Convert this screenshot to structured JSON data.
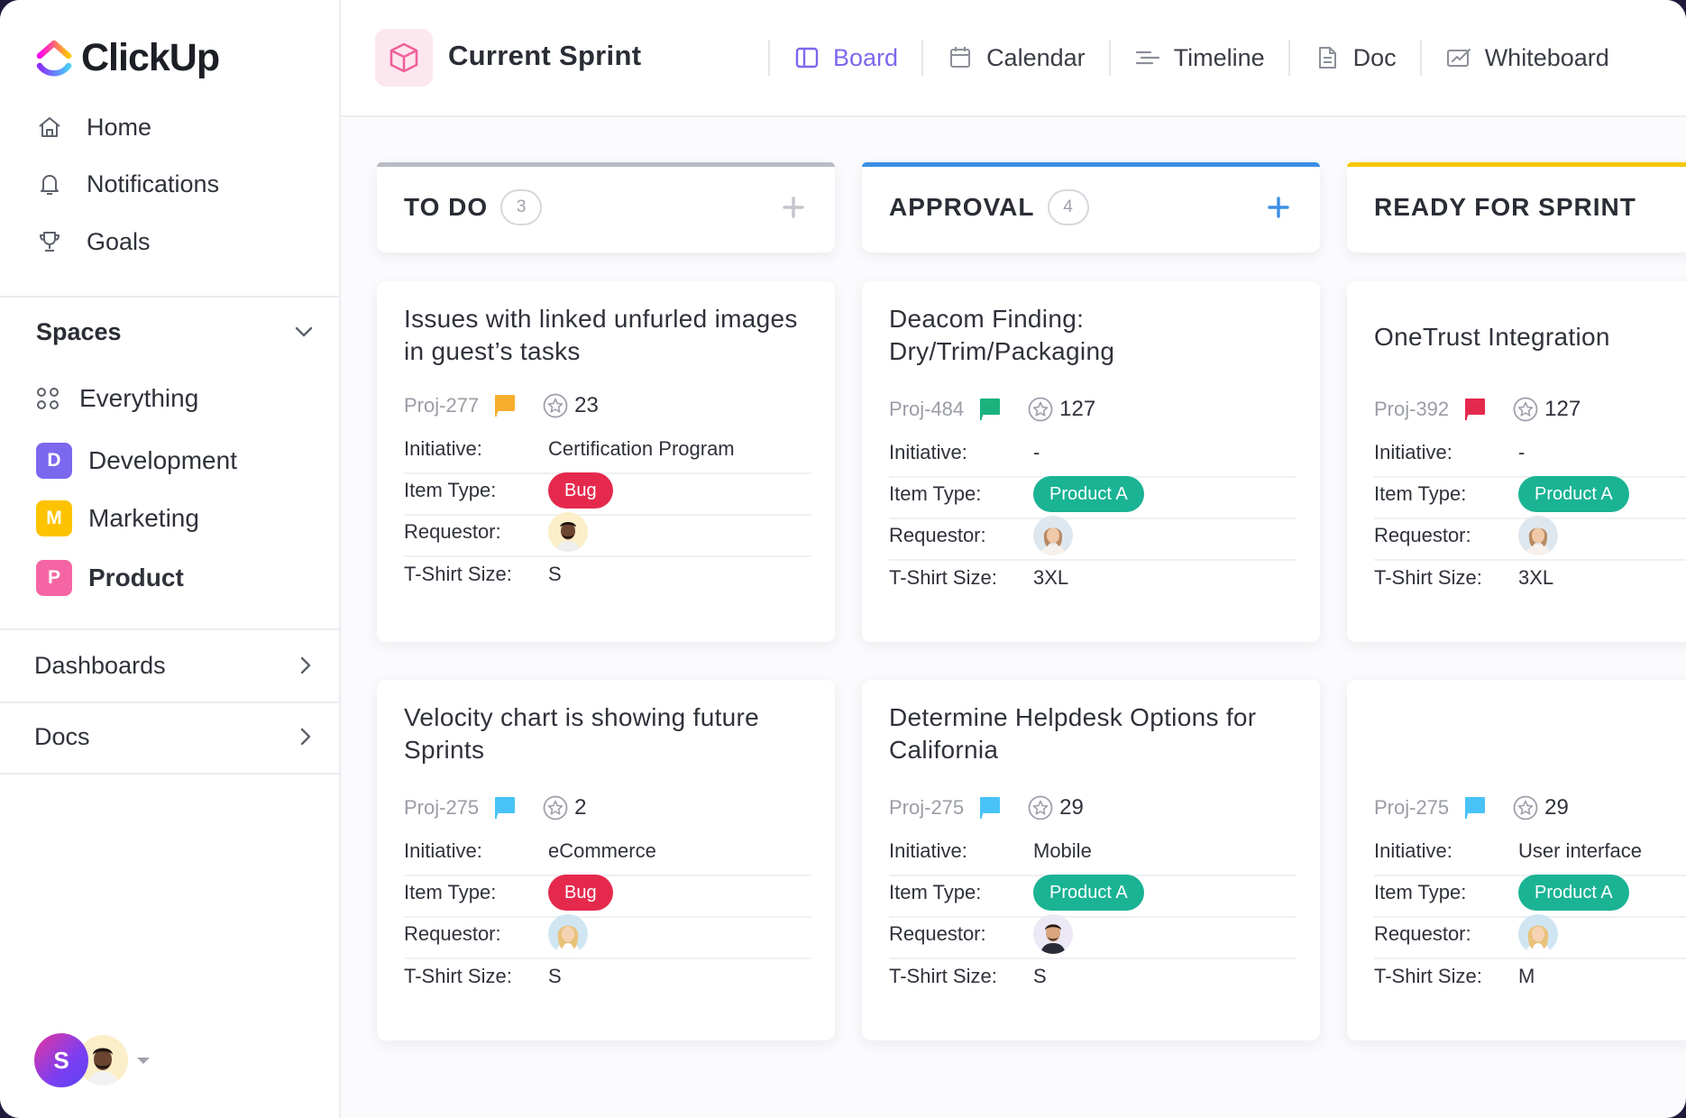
{
  "app": {
    "name": "ClickUp"
  },
  "sidebar": {
    "nav": [
      {
        "label": "Home",
        "icon": "home-icon"
      },
      {
        "label": "Notifications",
        "icon": "bell-icon"
      },
      {
        "label": "Goals",
        "icon": "trophy-icon"
      }
    ],
    "spaces_label": "Spaces",
    "everything_label": "Everything",
    "spaces": [
      {
        "letter": "D",
        "label": "Development",
        "color": "#7b68ee"
      },
      {
        "letter": "M",
        "label": "Marketing",
        "color": "#fdc300"
      },
      {
        "letter": "P",
        "label": "Product",
        "color": "#f565a4"
      }
    ],
    "dashboards_label": "Dashboards",
    "docs_label": "Docs",
    "user_initial": "S"
  },
  "topbar": {
    "title": "Current Sprint",
    "tabs": [
      {
        "label": "Board",
        "icon": "board-icon",
        "active": true
      },
      {
        "label": "Calendar",
        "icon": "calendar-icon"
      },
      {
        "label": "Timeline",
        "icon": "timeline-icon"
      },
      {
        "label": "Doc",
        "icon": "doc-icon"
      },
      {
        "label": "Whiteboard",
        "icon": "whiteboard-icon"
      }
    ]
  },
  "board": {
    "field_labels": {
      "initiative": "Initiative:",
      "item_type": "Item Type:",
      "requestor": "Requestor:",
      "tshirt": "T-Shirt Size:"
    },
    "columns": [
      {
        "title": "TO DO",
        "count": "3",
        "color": "#b9bcc4",
        "cards": [
          {
            "title": "Issues with linked unfurled images in guest’s tasks",
            "proj": "Proj-277",
            "flag": "#f8ae2d",
            "points": "23",
            "initiative": "Certification Program",
            "type": "Bug",
            "size": "S"
          },
          {
            "title": "Velocity chart is showing future Sprints",
            "proj": "Proj-275",
            "flag": "#49c3f7",
            "points": "2",
            "initiative": "eCommerce",
            "type": "Bug",
            "size": "S"
          }
        ]
      },
      {
        "title": "APPROVAL",
        "count": "4",
        "color": "#3b8fe4",
        "cards": [
          {
            "title": "Deacom Finding: Dry/Trim/Packaging",
            "proj": "Proj-484",
            "flag": "#1ab37e",
            "points": "127",
            "initiative": "-",
            "type": "Product A",
            "size": "3XL"
          },
          {
            "title": "Determine Helpdesk Options for California",
            "proj": "Proj-275",
            "flag": "#49c3f7",
            "points": "29",
            "initiative": "Mobile",
            "type": "Product A",
            "size": "S"
          }
        ]
      },
      {
        "title": "READY FOR SPRINT",
        "count": "",
        "color": "#f5c800",
        "cards": [
          {
            "title": "OneTrust Integration",
            "proj": "Proj-392",
            "flag": "#e5294d",
            "points": "127",
            "initiative": "-",
            "type": "Product A",
            "size": "3XL"
          },
          {
            "title": "",
            "proj": "Proj-275",
            "flag": "#49c3f7",
            "points": "29",
            "initiative": "User interface",
            "type": "Product A",
            "size": "M"
          }
        ]
      }
    ]
  }
}
